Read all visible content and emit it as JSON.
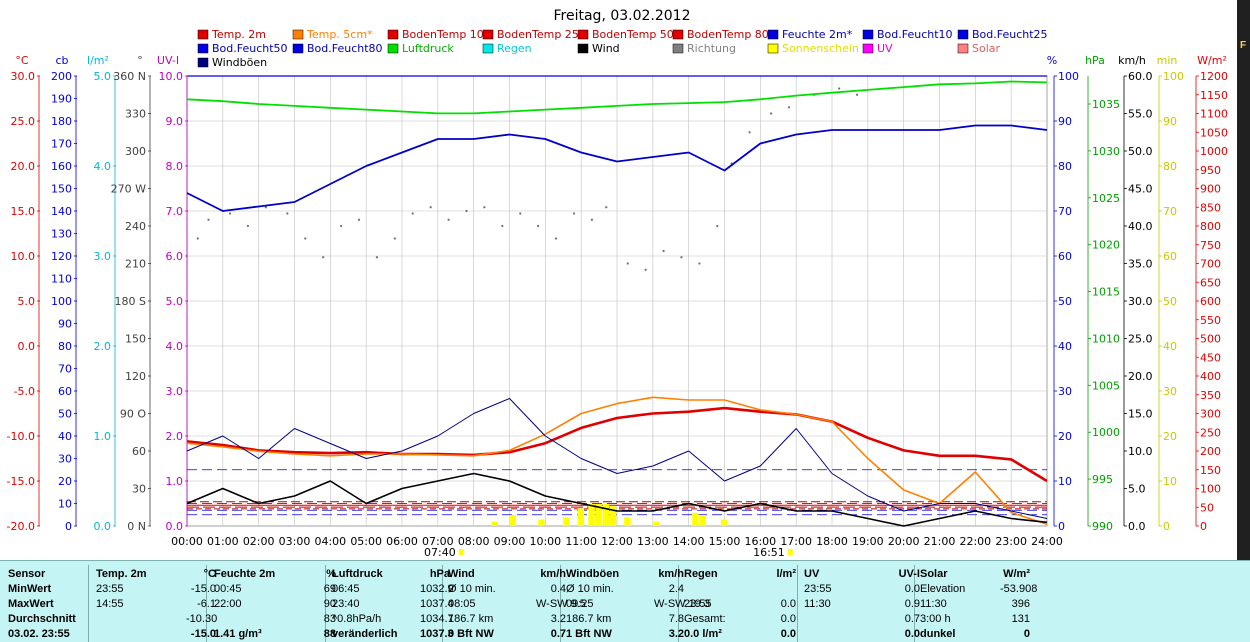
{
  "chart_data": {
    "type": "line",
    "title": "Freitag, 03.02.2012",
    "legend": [
      {
        "name": "Temp. 2m",
        "color": "#e00000"
      },
      {
        "name": "Temp. 5cm*",
        "color": "#ff8000"
      },
      {
        "name": "BodenTemp 10",
        "color": "#e00000"
      },
      {
        "name": "BodenTemp 25",
        "color": "#e00000"
      },
      {
        "name": "BodenTemp 50",
        "color": "#e00000"
      },
      {
        "name": "BodenTemp 80",
        "color": "#e00000"
      },
      {
        "name": "Feuchte 2m*",
        "color": "#0000e0"
      },
      {
        "name": "Bod.Feucht10",
        "color": "#0000e0"
      },
      {
        "name": "Bod.Feucht25",
        "color": "#0000e0"
      },
      {
        "name": "Bod.Feucht50",
        "color": "#0000e0"
      },
      {
        "name": "Bod.Feucht80",
        "color": "#0000e0"
      },
      {
        "name": "Luftdruck",
        "color": "#00e000"
      },
      {
        "name": "Regen",
        "color": "#00e8e8"
      },
      {
        "name": "Wind",
        "color": "#000000"
      },
      {
        "name": "Richtung",
        "color": "#808080"
      },
      {
        "name": "Sonnenschein",
        "color": "#ffff00"
      },
      {
        "name": "UV",
        "color": "#ff00ff"
      },
      {
        "name": "Solar",
        "color": "#ff8080"
      },
      {
        "name": "Windböen",
        "color": "#000080"
      }
    ],
    "x_axis": {
      "ticks": [
        "00:00",
        "01:00",
        "02:00",
        "03:00",
        "04:00",
        "05:00",
        "06:00",
        "07:00",
        "08:00",
        "09:00",
        "10:00",
        "11:00",
        "12:00",
        "13:00",
        "14:00",
        "15:00",
        "16:00",
        "17:00",
        "18:00",
        "19:00",
        "20:00",
        "21:00",
        "22:00",
        "23:00",
        "24:00"
      ],
      "markers": [
        {
          "label": "07:40",
          "hour": 7.667
        },
        {
          "label": "16:51",
          "hour": 16.85
        }
      ]
    },
    "axes": {
      "temp_c": {
        "unit": "°C",
        "color": "#e00000",
        "ticks": [
          "30.0",
          "25.0",
          "20.0",
          "15.0",
          "10.0",
          "5.0",
          "0.0",
          "-5.0",
          "-10.0",
          "-15.0",
          "-20.0"
        ]
      },
      "cb": {
        "unit": "cb",
        "color": "#0000e0",
        "ticks": [
          "200",
          "190",
          "180",
          "170",
          "160",
          "150",
          "140",
          "130",
          "120",
          "110",
          "100",
          "90",
          "80",
          "70",
          "60",
          "50",
          "40",
          "30",
          "20",
          "10",
          "0"
        ]
      },
      "rain": {
        "unit": "l/m²",
        "color": "#00b8d8",
        "ticks": [
          "5.0",
          "4.0",
          "3.0",
          "2.0",
          "1.0",
          "0.0"
        ]
      },
      "direction": {
        "unit": "°",
        "color": "#404040",
        "ticks": [
          "360 N",
          "330",
          "300",
          "270 W",
          "240",
          "210",
          "180 S",
          "150",
          "120",
          "90  O",
          "60",
          "30",
          "0  N"
        ]
      },
      "uv": {
        "unit": "UV-I",
        "color": "#c000c0",
        "ticks": [
          "10.0",
          "9.0",
          "8.0",
          "7.0",
          "6.0",
          "5.0",
          "4.0",
          "3.0",
          "2.0",
          "1.0",
          "0.0"
        ]
      },
      "humidity": {
        "unit": "%",
        "color": "#0000e0",
        "ticks": [
          "100",
          "90",
          "80",
          "70",
          "60",
          "50",
          "40",
          "30",
          "20",
          "10",
          "0"
        ]
      },
      "pressure": {
        "unit": "hPa",
        "color": "#00a000",
        "ticks": [
          "1035",
          "1030",
          "1025",
          "1020",
          "1015",
          "1010",
          "1005",
          "1000",
          "995",
          "990"
        ]
      },
      "wind": {
        "unit": "km/h",
        "color": "#000000",
        "ticks": [
          "60.0",
          "55.0",
          "50.0",
          "45.0",
          "40.0",
          "35.0",
          "30.0",
          "25.0",
          "20.0",
          "15.0",
          "10.0",
          "5.0",
          "0.0"
        ]
      },
      "sun_min": {
        "unit": "min",
        "color": "#c8c800",
        "ticks": [
          "100",
          "90",
          "80",
          "70",
          "60",
          "50",
          "40",
          "30",
          "20",
          "10",
          "0"
        ]
      },
      "solar": {
        "unit": "W/m²",
        "color": "#e00000",
        "ticks": [
          "1200",
          "1150",
          "1100",
          "1050",
          "1000",
          "950",
          "900",
          "850",
          "800",
          "750",
          "700",
          "650",
          "600",
          "550",
          "500",
          "450",
          "400",
          "350",
          "300",
          "250",
          "200",
          "150",
          "100",
          "50",
          "0"
        ]
      }
    },
    "series": [
      {
        "name": "Temp. 2m",
        "axis": "temp_c",
        "x": [
          0,
          1,
          2,
          3,
          4,
          5,
          6,
          7,
          8,
          9,
          10,
          11,
          12,
          13,
          14,
          15,
          16,
          17,
          18,
          19,
          20,
          21,
          22,
          23,
          24
        ],
        "y": [
          -10.6,
          -11.0,
          -11.6,
          -11.8,
          -11.9,
          -11.8,
          -12.0,
          -12.0,
          -12.1,
          -11.8,
          -10.8,
          -9.1,
          -8.0,
          -7.5,
          -7.3,
          -6.9,
          -7.3,
          -7.6,
          -8.4,
          -10.2,
          -11.6,
          -12.2,
          -12.2,
          -12.6,
          -15.0
        ]
      },
      {
        "name": "Temp. 5cm*",
        "axis": "temp_c",
        "x": [
          0,
          1,
          2,
          3,
          4,
          5,
          6,
          7,
          8,
          9,
          10,
          11,
          12,
          13,
          14,
          15,
          16,
          17,
          18,
          19,
          20,
          21,
          22,
          23,
          24
        ],
        "y": [
          -10.8,
          -11.2,
          -11.7,
          -12.0,
          -12.2,
          -12.0,
          -12.0,
          -12.1,
          -12.2,
          -11.6,
          -9.8,
          -7.5,
          -6.4,
          -5.7,
          -6.0,
          -6.0,
          -7.1,
          -7.6,
          -8.4,
          -12.5,
          -16.0,
          -17.5,
          -14.0,
          -18.5,
          -19.8
        ]
      },
      {
        "name": "Feuchte 2m*",
        "axis": "humidity",
        "x": [
          0,
          1,
          2,
          3,
          4,
          5,
          6,
          7,
          8,
          9,
          10,
          11,
          12,
          13,
          14,
          15,
          16,
          17,
          18,
          19,
          20,
          21,
          22,
          23,
          24
        ],
        "y": [
          74,
          70,
          71,
          72,
          76,
          80,
          83,
          86,
          86,
          87,
          86,
          83,
          81,
          82,
          83,
          79,
          85,
          87,
          88,
          88,
          88,
          88,
          89,
          89,
          88
        ]
      },
      {
        "name": "Luftdruck",
        "axis": "pressure",
        "x": [
          0,
          1,
          2,
          3,
          4,
          5,
          6,
          7,
          8,
          9,
          10,
          11,
          12,
          13,
          14,
          15,
          16,
          17,
          18,
          19,
          20,
          21,
          22,
          23,
          24
        ],
        "y": [
          1035.5,
          1035.3,
          1035.0,
          1034.8,
          1034.6,
          1034.4,
          1034.2,
          1034.0,
          1034.0,
          1034.2,
          1034.4,
          1034.6,
          1034.8,
          1035.0,
          1035.1,
          1035.2,
          1035.5,
          1035.9,
          1036.2,
          1036.5,
          1036.8,
          1037.1,
          1037.2,
          1037.4,
          1037.3
        ]
      },
      {
        "name": "Wind",
        "axis": "wind",
        "x": [
          0,
          1,
          2,
          3,
          4,
          5,
          6,
          7,
          8,
          9,
          10,
          11,
          12,
          13,
          14,
          15,
          16,
          17,
          18,
          19,
          20,
          21,
          22,
          23,
          24
        ],
        "y": [
          3,
          5,
          3,
          4,
          6,
          3,
          5,
          6,
          7,
          6,
          4,
          3,
          2,
          2,
          3,
          2,
          3,
          2,
          2,
          1,
          0,
          1,
          2,
          1,
          0.5
        ]
      },
      {
        "name": "Windböen",
        "axis": "wind",
        "x": [
          0,
          1,
          2,
          3,
          4,
          5,
          6,
          7,
          8,
          9,
          10,
          11,
          12,
          13,
          14,
          15,
          16,
          17,
          18,
          19,
          20,
          21,
          22,
          23,
          24
        ],
        "y": [
          10,
          12,
          9,
          13,
          11,
          9,
          10,
          12,
          15,
          17,
          12,
          9,
          7,
          8,
          10,
          6,
          8,
          13,
          7,
          4,
          2,
          3,
          3,
          2,
          1
        ]
      }
    ],
    "stats": {
      "headers": [
        {
          "label": "Sensor",
          "unit": ""
        },
        {
          "label": "Temp. 2m",
          "unit": "°C"
        },
        {
          "label": "Feuchte 2m",
          "unit": "%"
        },
        {
          "label": "Luftdruck",
          "unit": "hPa"
        },
        {
          "label": "Wind",
          "unit": "km/h"
        },
        {
          "label": "Windböen",
          "unit": "km/h"
        },
        {
          "label": "Regen",
          "unit": "l/m²"
        },
        {
          "label": "UV",
          "unit": "UV-I"
        },
        {
          "label": "Solar",
          "unit": "W/m²"
        }
      ],
      "row_labels": [
        "MinWert",
        "MaxWert",
        "Durchschnitt",
        "03.02. 23:55"
      ],
      "temp": [
        [
          "23:55",
          "-15.0"
        ],
        [
          "14:55",
          "-6.1"
        ],
        [
          "",
          "-10.30"
        ],
        [
          "",
          "-15.0"
        ]
      ],
      "humidity": [
        [
          "00:45",
          "69"
        ],
        [
          "22:00",
          "90"
        ],
        [
          "",
          "83"
        ],
        [
          "1.41 g/m³",
          "88"
        ]
      ],
      "pressure": [
        [
          "06:45",
          "1032.9"
        ],
        [
          "23:40",
          "1037.4"
        ],
        [
          "^0.8hPa/h",
          "1034.7"
        ],
        [
          "veränderlich",
          "1037.3"
        ]
      ],
      "wind": [
        [
          "Ø 10 min.",
          "0.4"
        ],
        [
          "08:05",
          "W-SW 9.5"
        ],
        [
          "186.7 km",
          "3.2"
        ],
        [
          "0 Bft NW",
          "0.7"
        ]
      ],
      "gusts": [
        [
          "Ø 10 min.",
          "2.4"
        ],
        [
          "09:25",
          "W-SW 19.3"
        ],
        [
          "186.7 km",
          "7.8"
        ],
        [
          "1 Bft NW",
          "3.2"
        ]
      ],
      "rain": [
        [
          "",
          ""
        ],
        [
          "23:55",
          "0.0"
        ],
        [
          "Gesamt:",
          "0.0"
        ],
        [
          "0.0 l/m²",
          "0.0"
        ]
      ],
      "uv": [
        [
          "23:55",
          "0.0"
        ],
        [
          "11:30",
          "0.9"
        ],
        [
          "",
          "0.7"
        ],
        [
          "",
          "0.0"
        ]
      ],
      "solar": [
        [
          "Elevation",
          "-53.908"
        ],
        [
          "11:30",
          "396"
        ],
        [
          "3:00 h",
          "131"
        ],
        [
          "dunkel",
          "0"
        ]
      ]
    }
  }
}
